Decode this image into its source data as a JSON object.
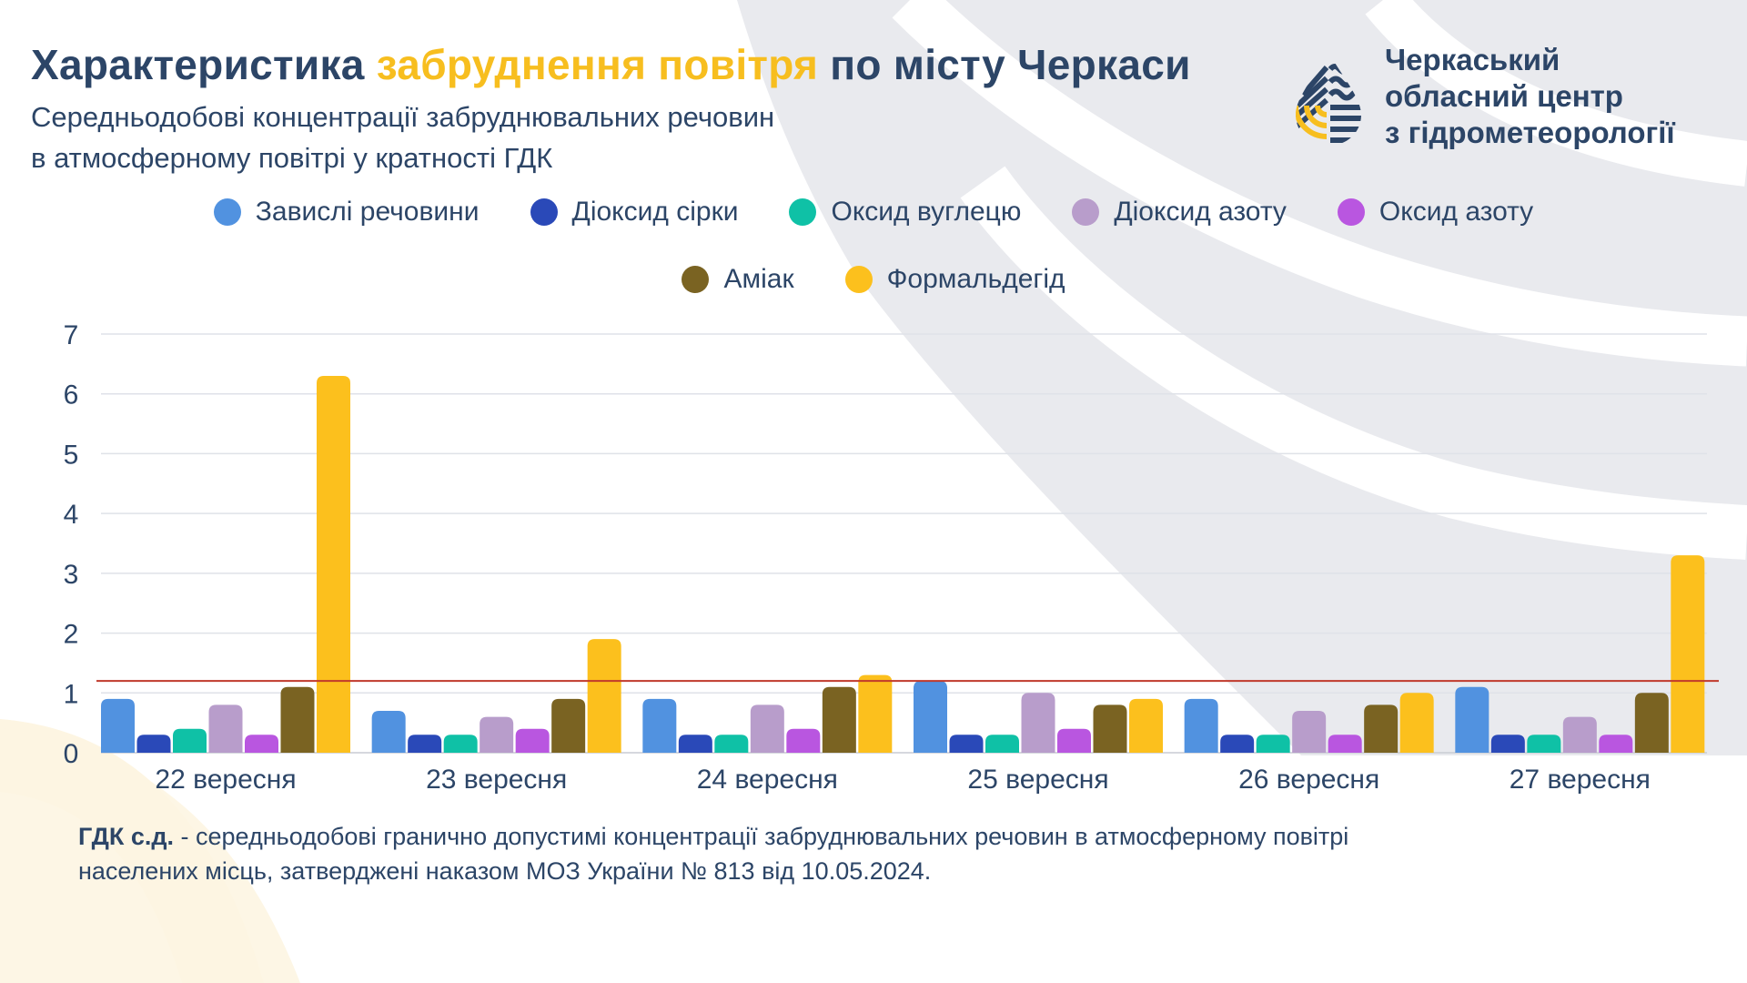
{
  "header": {
    "title_part1": "Характеристика",
    "title_accent": "забруднення повітря",
    "title_part2": "по місту Черкаси",
    "subtitle_line1": "Середньодобові концентрації забруднювальних речовин",
    "subtitle_line2": "в атмосферному повітрі у кратності ГДК"
  },
  "logo": {
    "line1": "Черкаський",
    "line2": "обласний центр",
    "line3": "з гідрометеорології"
  },
  "colors": {
    "text": "#2c4567",
    "accent": "#f7be1f",
    "limit_line": "#c0392b",
    "grid": "#dfe2e8",
    "bg_shape": "#e9eaee",
    "bg_warm": "#fdf5e2"
  },
  "footer": {
    "term": "ГДК с.д.",
    "definition_line1": " - середньодобові гранично допустимі концентрації забруднювальних речовин в атмосферному повітрі",
    "definition_line2": "населених місць, затверджені наказом МОЗ України № 813 від 10.05.2024."
  },
  "chart_data": {
    "type": "bar",
    "title": "Характеристика забруднення повітря по місту Черкаси",
    "xlabel": "",
    "ylabel": "",
    "ylim": [
      0,
      7
    ],
    "yticks": [
      "0",
      "1",
      "2",
      "3",
      "4",
      "5",
      "6",
      "7"
    ],
    "grid": true,
    "legend_position": "top",
    "categories": [
      "22 вересня",
      "23 вересня",
      "24 вересня",
      "25 вересня",
      "26 вересня",
      "27 вересня"
    ],
    "reference_line": {
      "value": 1.2,
      "color": "#c0392b"
    },
    "series": [
      {
        "name": "Завислі речовини",
        "color": "#5192e0",
        "values": [
          0.9,
          0.7,
          0.9,
          1.2,
          0.9,
          1.1
        ]
      },
      {
        "name": "Діоксид сірки",
        "color": "#2a49b8",
        "values": [
          0.3,
          0.3,
          0.3,
          0.3,
          0.3,
          0.3
        ]
      },
      {
        "name": "Оксид вуглецю",
        "color": "#0fc1a6",
        "values": [
          0.4,
          0.3,
          0.3,
          0.3,
          0.3,
          0.3
        ]
      },
      {
        "name": "Діоксид азоту",
        "color": "#b89dcb",
        "values": [
          0.8,
          0.6,
          0.8,
          1.0,
          0.7,
          0.6
        ]
      },
      {
        "name": "Оксид азоту",
        "color": "#b956e0",
        "values": [
          0.3,
          0.4,
          0.4,
          0.4,
          0.3,
          0.3
        ]
      },
      {
        "name": "Аміак",
        "color": "#7a6322",
        "values": [
          1.1,
          0.9,
          1.1,
          0.8,
          0.8,
          1.0
        ]
      },
      {
        "name": "Формальдегід",
        "color": "#fcc01d",
        "values": [
          6.3,
          1.9,
          1.3,
          0.9,
          1.0,
          3.3
        ]
      }
    ]
  }
}
